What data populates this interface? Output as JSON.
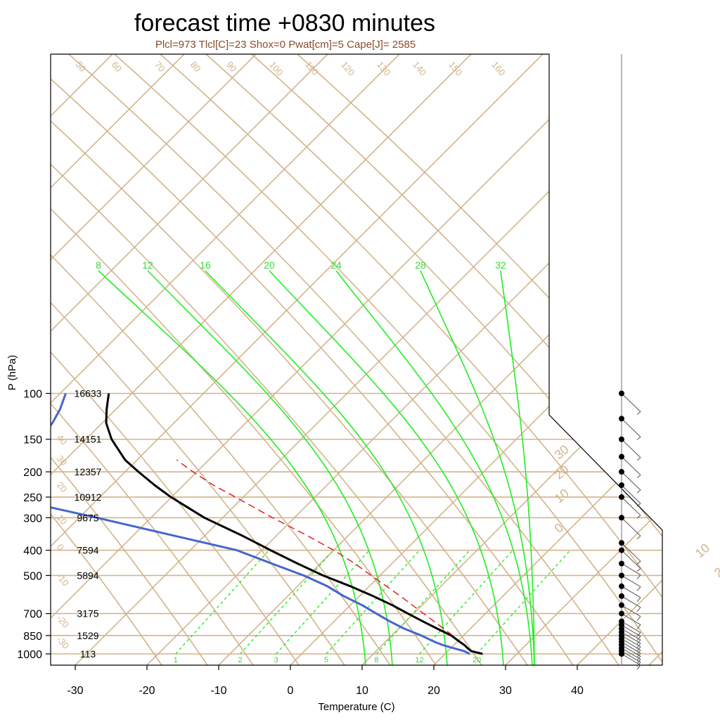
{
  "chart_data": {
    "type": "line",
    "diagram": "skew-T log-P",
    "title": "forecast time +0830 minutes",
    "subtitle": "Plcl=973 Tlcl[C]=23 Shox=0 Pwat[cm]=5 Cape[J]= 2585",
    "xlabel": "Temperature (C)",
    "ylabel": "P (hPa)",
    "xlim": [
      -34,
      42
    ],
    "ylim": [
      1030,
      100
    ],
    "pressure_scale": "log",
    "x_ticks": [
      -30,
      -20,
      -10,
      0,
      10,
      20,
      30,
      40
    ],
    "pressure_levels": [
      100,
      150,
      200,
      250,
      300,
      400,
      500,
      700,
      850,
      1000
    ],
    "height_labels": [
      "16633",
      "14151",
      "12357",
      "10912",
      "9675",
      "7594",
      "5894",
      "3175",
      "1529",
      "113"
    ],
    "isotherm_labels": [
      {
        "value": "30",
        "p": 180
      },
      {
        "value": "20",
        "p": 215
      },
      {
        "value": "10",
        "p": 265
      },
      {
        "value": "0",
        "p": 345
      },
      {
        "value": "10",
        "p": 430
      },
      {
        "value": "20",
        "p": 510
      },
      {
        "value": "30",
        "p": 600
      }
    ],
    "left_isotherm_labels": [
      {
        "value": "40",
        "p": 148
      },
      {
        "value": "30",
        "p": 178
      },
      {
        "value": "20",
        "p": 225
      },
      {
        "value": "10",
        "p": 300
      },
      {
        "value": "0",
        "p": 390
      },
      {
        "value": "-10",
        "p": 505
      },
      {
        "value": "-20",
        "p": 730
      },
      {
        "value": "-30",
        "p": 880
      }
    ],
    "theta_labels": [
      {
        "value": "50",
        "x": -30
      },
      {
        "value": "60",
        "x": -25
      },
      {
        "value": "70",
        "x": -19
      },
      {
        "value": "80",
        "x": -14
      },
      {
        "value": "90",
        "x": -9
      },
      {
        "value": "100",
        "x": -3
      },
      {
        "value": "110",
        "x": 2
      },
      {
        "value": "120",
        "x": 7
      },
      {
        "value": "130",
        "x": 12
      },
      {
        "value": "140",
        "x": 17
      },
      {
        "value": "150",
        "x": 22
      },
      {
        "value": "160",
        "x": 28
      }
    ],
    "moist_adiabat_labels": [
      "8",
      "12",
      "16",
      "20",
      "24",
      "28",
      "32"
    ],
    "mixing_ratio_labels": [
      "1",
      "2",
      "3",
      "5",
      "8",
      "12",
      "20"
    ],
    "mixing_ratio_x_at_1000": [
      -16,
      -7,
      -2,
      5,
      12,
      18,
      26
    ],
    "series": [
      {
        "role": "temperature",
        "color": "#000000",
        "points": [
          {
            "p": 1000,
            "x": 26.8
          },
          {
            "p": 975,
            "x": 25.6
          },
          {
            "p": 950,
            "x": 25.5
          },
          {
            "p": 925,
            "x": 25.5
          },
          {
            "p": 900,
            "x": 25.3
          },
          {
            "p": 850,
            "x": 25.0
          },
          {
            "p": 800,
            "x": 24.0
          },
          {
            "p": 750,
            "x": 23.0
          },
          {
            "p": 700,
            "x": 22.0
          },
          {
            "p": 650,
            "x": 21.0
          },
          {
            "p": 600,
            "x": 19.6
          },
          {
            "p": 550,
            "x": 17.8
          },
          {
            "p": 500,
            "x": 15.5
          },
          {
            "p": 450,
            "x": 13.6
          },
          {
            "p": 400,
            "x": 11.7
          },
          {
            "p": 350,
            "x": 9.7
          },
          {
            "p": 300,
            "x": 7.0
          },
          {
            "p": 250,
            "x": 5.2
          },
          {
            "p": 225,
            "x": 4.6
          },
          {
            "p": 200,
            "x": 4.2
          },
          {
            "p": 180,
            "x": 4.0
          },
          {
            "p": 150,
            "x": 5.0
          },
          {
            "p": 130,
            "x": 6.5
          },
          {
            "p": 115,
            "x": 8.5
          },
          {
            "p": 100,
            "x": 11.0
          }
        ]
      },
      {
        "role": "dewpoint",
        "color": "#4466cc",
        "points": [
          {
            "p": 1000,
            "x": 25.0
          },
          {
            "p": 975,
            "x": 24.6
          },
          {
            "p": 950,
            "x": 23.5
          },
          {
            "p": 925,
            "x": 22.5
          },
          {
            "p": 900,
            "x": 21.8
          },
          {
            "p": 850,
            "x": 20.8
          },
          {
            "p": 800,
            "x": 19.4
          },
          {
            "p": 750,
            "x": 18.4
          },
          {
            "p": 700,
            "x": 17.6
          },
          {
            "p": 650,
            "x": 16.8
          },
          {
            "p": 600,
            "x": 15.5
          },
          {
            "p": 550,
            "x": 14.6
          },
          {
            "p": 500,
            "x": 12.8
          },
          {
            "p": 450,
            "x": 10.0
          },
          {
            "p": 400,
            "x": 7.0
          },
          {
            "p": 350,
            "x": 0.0
          },
          {
            "p": 300,
            "x": -8.0
          },
          {
            "p": 250,
            "x": -18.0
          },
          {
            "p": 225,
            "x": -17.0
          },
          {
            "p": 200,
            "x": -14.5
          },
          {
            "p": 175,
            "x": -10.5
          },
          {
            "p": 150,
            "x": -5.0
          },
          {
            "p": 130,
            "x": -1.0
          },
          {
            "p": 115,
            "x": 2.0
          },
          {
            "p": 100,
            "x": 5.0
          }
        ]
      },
      {
        "role": "parcel",
        "color": "#dd2222",
        "dashed": true,
        "points": [
          {
            "p": 850,
            "x": 25.2
          },
          {
            "p": 700,
            "x": 24.2
          },
          {
            "p": 600,
            "x": 23.4
          },
          {
            "p": 500,
            "x": 22.2
          },
          {
            "p": 450,
            "x": 21.6
          },
          {
            "p": 400,
            "x": 20.5
          },
          {
            "p": 350,
            "x": 18.8
          },
          {
            "p": 300,
            "x": 16.5
          },
          {
            "p": 250,
            "x": 14.2
          },
          {
            "p": 225,
            "x": 12.8
          },
          {
            "p": 200,
            "x": 11.8
          },
          {
            "p": 180,
            "x": 11.2
          }
        ]
      }
    ],
    "wind_barb_levels": [
      1000,
      975,
      950,
      925,
      900,
      875,
      850,
      825,
      800,
      775,
      750,
      700,
      650,
      600,
      550,
      500,
      450,
      400,
      375,
      300,
      250,
      225,
      200,
      175,
      150,
      125,
      100
    ]
  }
}
